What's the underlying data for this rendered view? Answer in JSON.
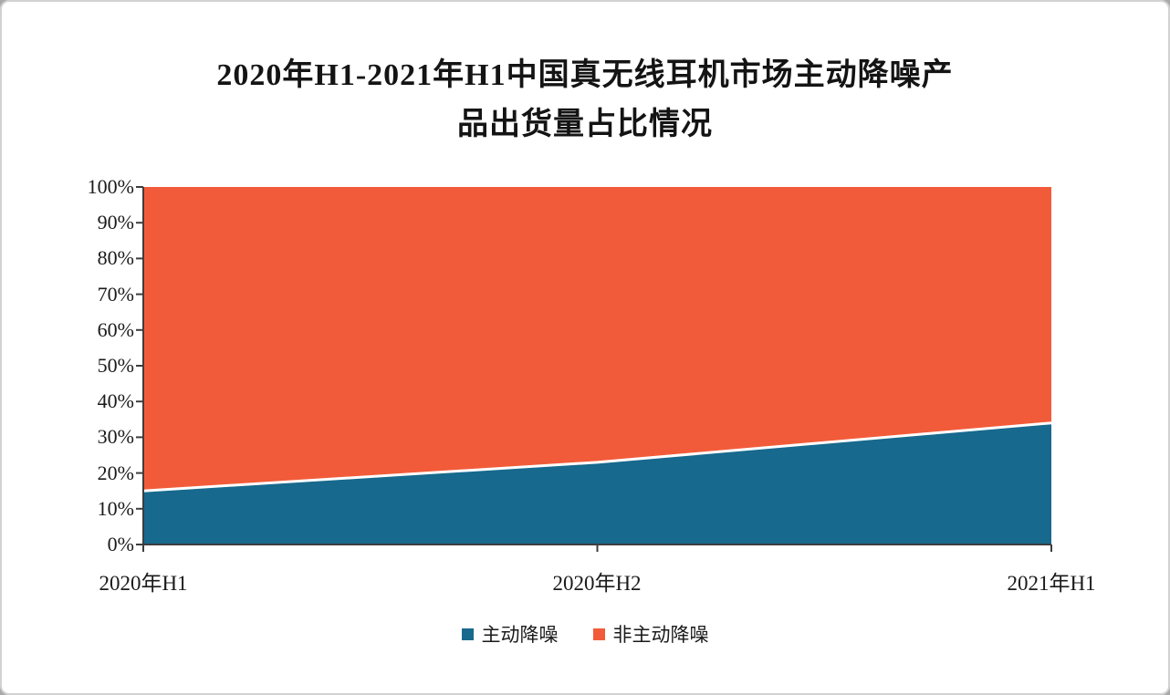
{
  "title": {
    "lines": [
      "2020年H1-2021年H1中国真无线耳机市场主动降噪产",
      "品出货量占比情况"
    ]
  },
  "chart_data": {
    "type": "area",
    "stacked_percent": true,
    "title": "2020年H1-2021年H1中国真无线耳机市场主动降噪产品出货量占比情况",
    "categories": [
      "2020年H1",
      "2020年H2",
      "2021年H1"
    ],
    "series": [
      {
        "name": "主动降噪",
        "color": "#17698d",
        "values": [
          15,
          23,
          34
        ]
      },
      {
        "name": "非主动降噪",
        "color": "#f25b39",
        "values": [
          85,
          77,
          66
        ]
      }
    ],
    "y_ticks": [
      "0%",
      "10%",
      "20%",
      "30%",
      "40%",
      "50%",
      "60%",
      "70%",
      "80%",
      "90%",
      "100%"
    ],
    "ylim": [
      0,
      100
    ],
    "xlabel": "",
    "ylabel": "",
    "grid": false,
    "legend_position": "bottom",
    "axis_color": "#3d3d3d",
    "boundary_line_color": "#ffffff"
  }
}
